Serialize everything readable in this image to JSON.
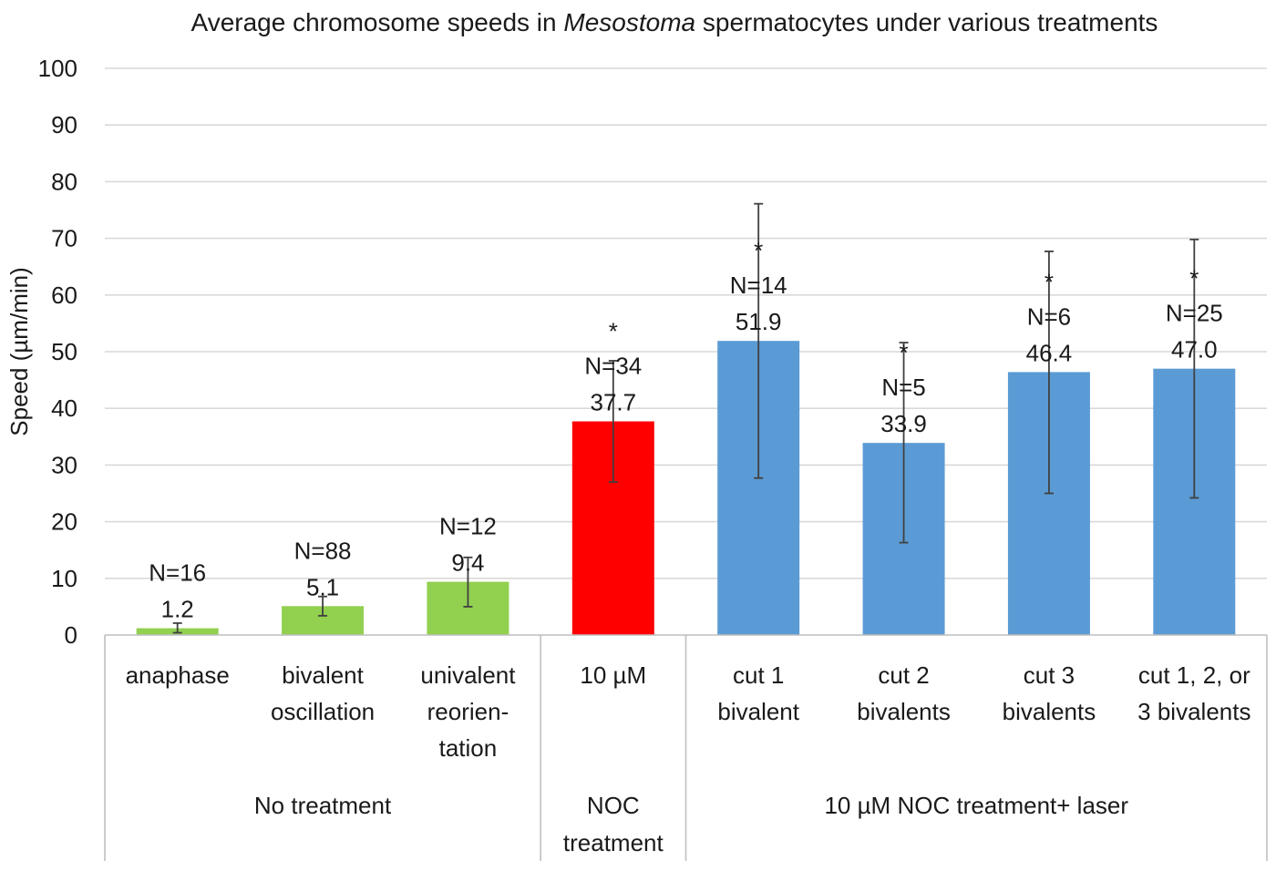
{
  "chart_data": {
    "type": "bar",
    "title_parts": [
      "Average chromosome speeds in ",
      "Mesostoma",
      " spermatocytes under various treatments"
    ],
    "ylabel": "Speed (µm/min)",
    "xlabel": "",
    "ylim": [
      0,
      100
    ],
    "yticks": [
      0,
      10,
      20,
      30,
      40,
      50,
      60,
      70,
      80,
      90,
      100
    ],
    "grid": true,
    "bars": [
      {
        "category_lines": [
          "anaphase"
        ],
        "value": 1.2,
        "value_label": "1.2",
        "n_label": "N=16",
        "significant": false,
        "err_low": 0.4,
        "err_high": 2.1,
        "color": "#92d050"
      },
      {
        "category_lines": [
          "bivalent",
          "oscillation"
        ],
        "value": 5.1,
        "value_label": "5.1",
        "n_label": "N=88",
        "significant": false,
        "err_low": 3.4,
        "err_high": 6.8,
        "color": "#92d050"
      },
      {
        "category_lines": [
          "univalent",
          "reorien-",
          "tation"
        ],
        "value": 9.4,
        "value_label": "9.4",
        "n_label": "N=12",
        "significant": false,
        "err_low": 5.0,
        "err_high": 13.7,
        "color": "#92d050"
      },
      {
        "category_lines": [
          "10 µM"
        ],
        "value": 37.7,
        "value_label": "37.7",
        "n_label": "N=34",
        "significant": true,
        "err_low": 27.0,
        "err_high": 48.4,
        "color": "#ff0000"
      },
      {
        "category_lines": [
          "cut 1",
          "bivalent"
        ],
        "value": 51.9,
        "value_label": "51.9",
        "n_label": "N=14",
        "significant": true,
        "err_low": 27.7,
        "err_high": 76.1,
        "color": "#5b9bd5"
      },
      {
        "category_lines": [
          "cut 2",
          "bivalents"
        ],
        "value": 33.9,
        "value_label": "33.9",
        "n_label": "N=5",
        "significant": true,
        "err_low": 16.3,
        "err_high": 51.6,
        "color": "#5b9bd5"
      },
      {
        "category_lines": [
          "cut 3",
          "bivalents"
        ],
        "value": 46.4,
        "value_label": "46.4",
        "n_label": "N=6",
        "significant": true,
        "err_low": 25.0,
        "err_high": 67.7,
        "color": "#5b9bd5"
      },
      {
        "category_lines": [
          "cut 1, 2, or",
          "3 bivalents"
        ],
        "value": 47.0,
        "value_label": "47.0",
        "n_label": "N=25",
        "significant": true,
        "err_low": 24.2,
        "err_high": 69.8,
        "color": "#5b9bd5"
      }
    ],
    "significance_marker": "*",
    "groups": [
      {
        "label_lines": [
          "No treatment"
        ],
        "first_bar": 0,
        "last_bar": 2
      },
      {
        "label_lines": [
          "NOC",
          "treatment"
        ],
        "first_bar": 3,
        "last_bar": 3
      },
      {
        "label_lines": [
          "10 µM NOC treatment+ laser"
        ],
        "first_bar": 4,
        "last_bar": 7
      }
    ]
  }
}
